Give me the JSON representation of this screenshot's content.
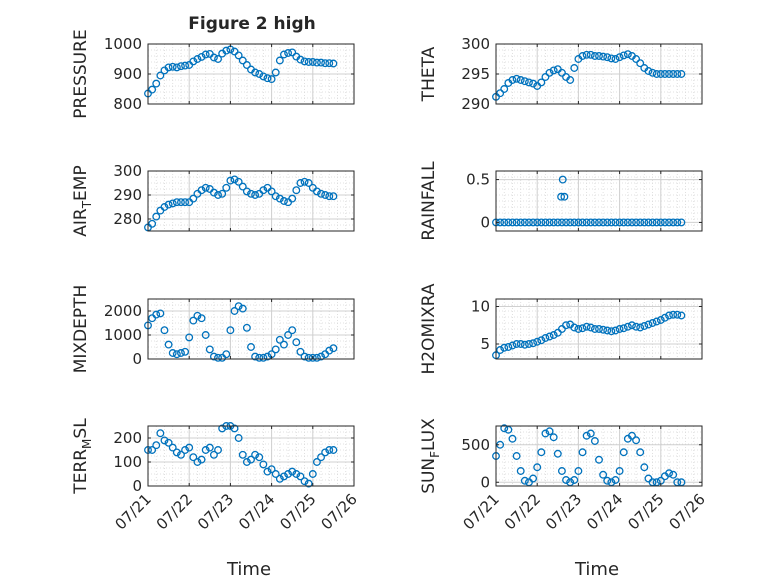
{
  "figure": {
    "title": "Figure 2 high"
  },
  "chart_data": [
    {
      "type": "scatter",
      "ylabel": "PRESSURE",
      "ylim": [
        800,
        1000
      ],
      "yticks": [
        800,
        900,
        1000
      ],
      "xlim": [
        "07/21",
        "07/26"
      ],
      "xticks": [
        "07/21",
        "07/22",
        "07/23",
        "07/24",
        "07/25",
        "07/26"
      ],
      "grid": true,
      "marker_color": "#0072BD",
      "series": [
        {
          "x": [
            0.0,
            0.1,
            0.2,
            0.3,
            0.4,
            0.5,
            0.6,
            0.7,
            0.8,
            0.9,
            1.0,
            1.1,
            1.2,
            1.3,
            1.4,
            1.5,
            1.6,
            1.7,
            1.8,
            1.9,
            2.0,
            2.1,
            2.2,
            2.3,
            2.4,
            2.5,
            2.6,
            2.7,
            2.8,
            2.9,
            3.0,
            3.1,
            3.2,
            3.3,
            3.4,
            3.5,
            3.6,
            3.7,
            3.8,
            3.9,
            4.0,
            4.1,
            4.2,
            4.3,
            4.4,
            4.5
          ],
          "y": [
            835,
            848,
            868,
            895,
            912,
            922,
            924,
            922,
            926,
            928,
            930,
            942,
            950,
            957,
            965,
            967,
            955,
            950,
            968,
            978,
            982,
            975,
            962,
            945,
            930,
            915,
            905,
            900,
            892,
            886,
            883,
            905,
            945,
            965,
            970,
            972,
            958,
            948,
            942,
            940,
            940,
            938,
            938,
            936,
            936,
            935
          ]
        }
      ]
    },
    {
      "type": "scatter",
      "ylabel": "THETA",
      "ylim": [
        290,
        300
      ],
      "yticks": [
        290,
        295,
        300
      ],
      "xlim": [
        "07/21",
        "07/26"
      ],
      "xticks": [
        "07/21",
        "07/22",
        "07/23",
        "07/24",
        "07/25",
        "07/26"
      ],
      "grid": true,
      "marker_color": "#0072BD",
      "series": [
        {
          "x": [
            0.0,
            0.1,
            0.2,
            0.3,
            0.4,
            0.5,
            0.6,
            0.7,
            0.8,
            0.9,
            1.0,
            1.1,
            1.2,
            1.3,
            1.4,
            1.5,
            1.6,
            1.7,
            1.8,
            1.9,
            2.0,
            2.1,
            2.2,
            2.3,
            2.4,
            2.5,
            2.6,
            2.7,
            2.8,
            2.9,
            3.0,
            3.1,
            3.2,
            3.3,
            3.4,
            3.5,
            3.6,
            3.7,
            3.8,
            3.9,
            4.0,
            4.1,
            4.2,
            4.3,
            4.4,
            4.5
          ],
          "y": [
            291.2,
            291.8,
            292.5,
            293.5,
            294.0,
            294.2,
            294.0,
            293.8,
            293.6,
            293.4,
            293.0,
            293.6,
            294.5,
            295.2,
            295.6,
            295.8,
            295.2,
            294.5,
            294.0,
            296.0,
            297.5,
            298.0,
            298.2,
            298.2,
            298.0,
            298.0,
            297.9,
            297.8,
            297.6,
            297.5,
            297.8,
            298.1,
            298.3,
            298.0,
            297.5,
            296.8,
            296.0,
            295.5,
            295.2,
            295.0,
            295.0,
            295.0,
            295.0,
            295.0,
            295.0,
            295.0
          ]
        }
      ]
    },
    {
      "type": "scatter",
      "ylabel": "AIR_TEMP",
      "ylim": [
        275,
        300
      ],
      "yticks": [
        280,
        290,
        300
      ],
      "xlim": [
        "07/21",
        "07/26"
      ],
      "xticks": [
        "07/21",
        "07/22",
        "07/23",
        "07/24",
        "07/25",
        "07/26"
      ],
      "grid": true,
      "marker_color": "#0072BD",
      "series": [
        {
          "x": [
            0.0,
            0.1,
            0.2,
            0.3,
            0.4,
            0.5,
            0.6,
            0.7,
            0.8,
            0.9,
            1.0,
            1.1,
            1.2,
            1.3,
            1.4,
            1.5,
            1.6,
            1.7,
            1.8,
            1.9,
            2.0,
            2.1,
            2.2,
            2.3,
            2.4,
            2.5,
            2.6,
            2.7,
            2.8,
            2.9,
            3.0,
            3.1,
            3.2,
            3.3,
            3.4,
            3.5,
            3.6,
            3.7,
            3.8,
            3.9,
            4.0,
            4.1,
            4.2,
            4.3,
            4.4,
            4.5
          ],
          "y": [
            276.5,
            278.0,
            281.0,
            283.5,
            285.0,
            286.0,
            286.5,
            287.0,
            287.0,
            287.0,
            287.0,
            288.5,
            290.5,
            292.0,
            293.0,
            292.5,
            291.0,
            290.0,
            290.5,
            293.0,
            296.0,
            296.5,
            295.5,
            293.5,
            291.5,
            290.5,
            290.0,
            290.5,
            292.0,
            293.0,
            291.5,
            289.5,
            288.5,
            287.5,
            287.0,
            288.5,
            292.0,
            295.0,
            295.5,
            295.0,
            293.0,
            291.5,
            290.5,
            290.0,
            289.5,
            289.5
          ]
        }
      ]
    },
    {
      "type": "scatter",
      "ylabel": "RAINFALL",
      "ylim": [
        -0.1,
        0.6
      ],
      "yticks": [
        0,
        0.5
      ],
      "xlim": [
        "07/21",
        "07/26"
      ],
      "xticks": [
        "07/21",
        "07/22",
        "07/23",
        "07/24",
        "07/25",
        "07/26"
      ],
      "grid": true,
      "marker_color": "#0072BD",
      "series": [
        {
          "x": [
            0.0,
            0.1,
            0.2,
            0.3,
            0.4,
            0.5,
            0.6,
            0.7,
            0.8,
            0.9,
            1.0,
            1.1,
            1.2,
            1.3,
            1.4,
            1.5,
            1.6,
            1.7,
            1.8,
            1.9,
            2.0,
            2.1,
            2.2,
            2.3,
            2.4,
            2.5,
            2.6,
            2.7,
            2.8,
            2.9,
            3.0,
            3.1,
            3.2,
            3.3,
            3.4,
            3.5,
            3.6,
            3.7,
            3.8,
            3.9,
            4.0,
            4.1,
            4.2,
            4.3,
            4.4,
            4.5,
            1.58,
            1.62,
            1.66
          ],
          "y": [
            0,
            0,
            0,
            0,
            0,
            0,
            0,
            0,
            0,
            0,
            0,
            0,
            0,
            0,
            0,
            0,
            0,
            0,
            0,
            0,
            0,
            0,
            0,
            0,
            0,
            0,
            0,
            0,
            0,
            0,
            0,
            0,
            0,
            0,
            0,
            0,
            0,
            0,
            0,
            0,
            0,
            0,
            0,
            0,
            0,
            0,
            0.3,
            0.5,
            0.3
          ]
        }
      ]
    },
    {
      "type": "scatter",
      "ylabel": "MIXDEPTH",
      "ylim": [
        0,
        2500
      ],
      "yticks": [
        0,
        1000,
        2000
      ],
      "xlim": [
        "07/21",
        "07/26"
      ],
      "xticks": [
        "07/21",
        "07/22",
        "07/23",
        "07/24",
        "07/25",
        "07/26"
      ],
      "grid": true,
      "marker_color": "#0072BD",
      "series": [
        {
          "x": [
            0.0,
            0.1,
            0.2,
            0.3,
            0.4,
            0.5,
            0.6,
            0.7,
            0.8,
            0.9,
            1.0,
            1.1,
            1.2,
            1.3,
            1.4,
            1.5,
            1.6,
            1.7,
            1.8,
            1.9,
            2.0,
            2.1,
            2.2,
            2.3,
            2.4,
            2.5,
            2.6,
            2.7,
            2.8,
            2.9,
            3.0,
            3.1,
            3.2,
            3.3,
            3.4,
            3.5,
            3.6,
            3.7,
            3.8,
            3.9,
            4.0,
            4.1,
            4.2,
            4.3,
            4.4,
            4.5
          ],
          "y": [
            1400,
            1700,
            1850,
            1900,
            1200,
            600,
            250,
            200,
            250,
            300,
            900,
            1600,
            1800,
            1700,
            1000,
            400,
            100,
            50,
            50,
            200,
            1200,
            2000,
            2200,
            2100,
            1300,
            500,
            100,
            50,
            50,
            100,
            200,
            400,
            800,
            600,
            1000,
            1200,
            700,
            300,
            100,
            50,
            50,
            50,
            100,
            200,
            350,
            450
          ]
        }
      ]
    },
    {
      "type": "scatter",
      "ylabel": "H2OMIXRA",
      "ylim": [
        3,
        11
      ],
      "yticks": [
        5,
        10
      ],
      "xlim": [
        "07/21",
        "07/26"
      ],
      "xticks": [
        "07/21",
        "07/22",
        "07/23",
        "07/24",
        "07/25",
        "07/26"
      ],
      "grid": true,
      "marker_color": "#0072BD",
      "series": [
        {
          "x": [
            0.0,
            0.1,
            0.2,
            0.3,
            0.4,
            0.5,
            0.6,
            0.7,
            0.8,
            0.9,
            1.0,
            1.1,
            1.2,
            1.3,
            1.4,
            1.5,
            1.6,
            1.7,
            1.8,
            1.9,
            2.0,
            2.1,
            2.2,
            2.3,
            2.4,
            2.5,
            2.6,
            2.7,
            2.8,
            2.9,
            3.0,
            3.1,
            3.2,
            3.3,
            3.4,
            3.5,
            3.6,
            3.7,
            3.8,
            3.9,
            4.0,
            4.1,
            4.2,
            4.3,
            4.4,
            4.5
          ],
          "y": [
            3.5,
            4.2,
            4.5,
            4.6,
            4.8,
            5.0,
            5.0,
            4.9,
            5.0,
            5.1,
            5.3,
            5.5,
            5.8,
            6.0,
            6.2,
            6.5,
            7.0,
            7.5,
            7.6,
            7.2,
            7.0,
            7.1,
            7.3,
            7.2,
            7.0,
            7.0,
            6.9,
            6.8,
            6.7,
            6.8,
            7.0,
            7.1,
            7.3,
            7.5,
            7.3,
            7.2,
            7.4,
            7.6,
            7.8,
            8.0,
            8.2,
            8.5,
            8.8,
            8.9,
            8.9,
            8.8
          ]
        }
      ]
    },
    {
      "type": "scatter",
      "ylabel": "TERR_MSL",
      "ylim": [
        0,
        250
      ],
      "yticks": [
        0,
        100,
        200
      ],
      "xlim": [
        "07/21",
        "07/26"
      ],
      "xticks": [
        "07/21",
        "07/22",
        "07/23",
        "07/24",
        "07/25",
        "07/26"
      ],
      "grid": true,
      "marker_color": "#0072BD",
      "series": [
        {
          "x": [
            0.0,
            0.1,
            0.2,
            0.3,
            0.4,
            0.5,
            0.6,
            0.7,
            0.8,
            0.9,
            1.0,
            1.1,
            1.2,
            1.3,
            1.4,
            1.5,
            1.6,
            1.7,
            1.8,
            1.9,
            2.0,
            2.1,
            2.2,
            2.3,
            2.4,
            2.5,
            2.6,
            2.7,
            2.8,
            2.9,
            3.0,
            3.1,
            3.2,
            3.3,
            3.4,
            3.5,
            3.6,
            3.7,
            3.8,
            3.9,
            4.0,
            4.1,
            4.2,
            4.3,
            4.4,
            4.5
          ],
          "y": [
            150,
            150,
            170,
            220,
            190,
            180,
            160,
            140,
            130,
            150,
            160,
            120,
            100,
            110,
            150,
            160,
            130,
            150,
            240,
            250,
            250,
            240,
            200,
            130,
            100,
            110,
            130,
            120,
            90,
            60,
            70,
            50,
            30,
            40,
            50,
            60,
            50,
            40,
            20,
            10,
            50,
            100,
            120,
            140,
            150,
            150
          ]
        }
      ]
    },
    {
      "type": "scatter",
      "ylabel": "SUN_FLUX",
      "ylim": [
        -50,
        750
      ],
      "yticks": [
        0,
        500
      ],
      "xlim": [
        "07/21",
        "07/26"
      ],
      "xticks": [
        "07/21",
        "07/22",
        "07/23",
        "07/24",
        "07/25",
        "07/26"
      ],
      "grid": true,
      "marker_color": "#0072BD",
      "series": [
        {
          "x": [
            0.0,
            0.1,
            0.2,
            0.3,
            0.4,
            0.5,
            0.6,
            0.7,
            0.8,
            0.9,
            1.0,
            1.1,
            1.2,
            1.3,
            1.4,
            1.5,
            1.6,
            1.7,
            1.8,
            1.9,
            2.0,
            2.1,
            2.2,
            2.3,
            2.4,
            2.5,
            2.6,
            2.7,
            2.8,
            2.9,
            3.0,
            3.1,
            3.2,
            3.3,
            3.4,
            3.5,
            3.6,
            3.7,
            3.8,
            3.9,
            4.0,
            4.1,
            4.2,
            4.3,
            4.4,
            4.5
          ],
          "y": [
            350,
            500,
            720,
            700,
            580,
            350,
            150,
            20,
            0,
            50,
            200,
            400,
            650,
            680,
            600,
            380,
            150,
            30,
            0,
            30,
            150,
            400,
            620,
            650,
            550,
            300,
            100,
            20,
            0,
            30,
            150,
            400,
            580,
            620,
            560,
            400,
            200,
            50,
            0,
            0,
            20,
            80,
            120,
            100,
            0,
            0
          ]
        }
      ]
    }
  ],
  "bottom_xlabels": [
    "Time",
    "Time"
  ]
}
